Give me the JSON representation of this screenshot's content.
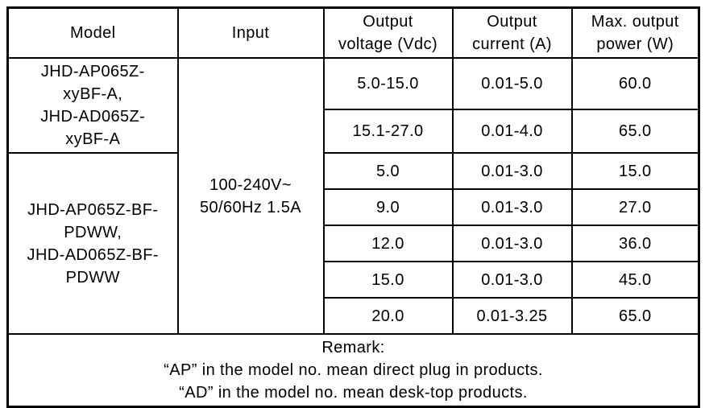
{
  "table": {
    "headers": {
      "model": "Model",
      "input": "Input",
      "output_voltage": "Output\nvoltage (Vdc)",
      "output_current": "Output\ncurrent (A)",
      "max_output_power": "Max. output\npower (W)"
    },
    "model_groups": [
      {
        "name": "JHD-AP065Z-\nxyBF-A,\nJHD-AD065Z-\nxyBF-A"
      },
      {
        "name": "JHD-AP065Z-BF-\nPDWW,\nJHD-AD065Z-BF-\nPDWW"
      }
    ],
    "input_value": "100-240V~\n50/60Hz 1.5A",
    "rows": [
      {
        "voltage": "5.0-15.0",
        "current": "0.01-5.0",
        "power": "60.0"
      },
      {
        "voltage": "15.1-27.0",
        "current": "0.01-4.0",
        "power": "65.0"
      },
      {
        "voltage": "5.0",
        "current": "0.01-3.0",
        "power": "15.0"
      },
      {
        "voltage": "9.0",
        "current": "0.01-3.0",
        "power": "27.0"
      },
      {
        "voltage": "12.0",
        "current": "0.01-3.0",
        "power": "36.0"
      },
      {
        "voltage": "15.0",
        "current": "0.01-3.0",
        "power": "45.0"
      },
      {
        "voltage": "20.0",
        "current": "0.01-3.25",
        "power": "65.0"
      }
    ],
    "remark": {
      "title": "Remark:",
      "line_ap": "“AP” in the model no. mean direct plug in products.",
      "line_ad": "“AD” in the model no. mean desk-top products."
    },
    "colors": {
      "border": "#000000",
      "text": "#000000",
      "background": "#ffffff"
    }
  }
}
